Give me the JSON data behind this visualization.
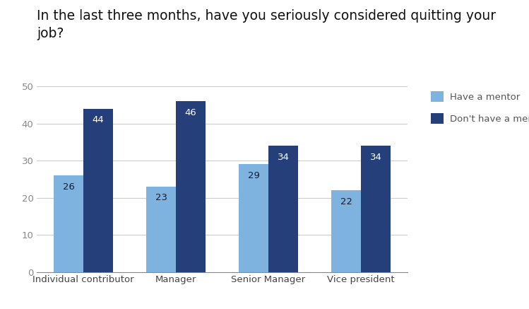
{
  "title_line1": "In the last three months, have you seriously considered quitting your",
  "title_line2": "job?",
  "categories": [
    "Individual contributor",
    "Manager",
    "Senior Manager",
    "Vice president"
  ],
  "have_mentor": [
    26,
    23,
    29,
    22
  ],
  "dont_have_mentor": [
    44,
    46,
    34,
    34
  ],
  "color_have_mentor": "#7eb3e0",
  "color_dont_have_mentor": "#243f7a",
  "legend_labels": [
    "Have a mentor",
    "Don't have a mentor"
  ],
  "ylim": [
    0,
    50
  ],
  "yticks": [
    0,
    10,
    20,
    30,
    40,
    50
  ],
  "bar_width": 0.32,
  "title_fontsize": 13.5,
  "tick_fontsize": 9.5,
  "label_fontsize": 9.5,
  "background_color": "#ffffff",
  "grid_color": "#cccccc"
}
